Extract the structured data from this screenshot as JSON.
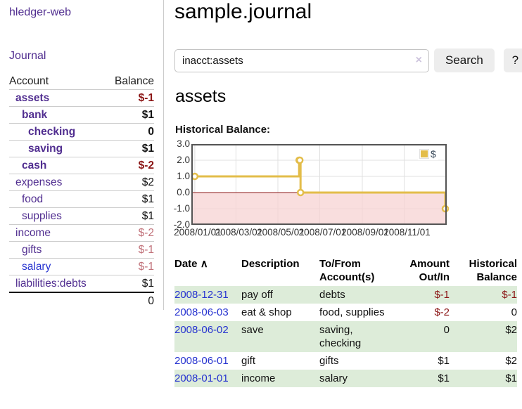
{
  "app": {
    "title": "hledger-web"
  },
  "colors": {
    "link_purple": "#512e90",
    "link_blue": "#2633d0",
    "negative": "#8b1515",
    "negative_muted": "#c17179",
    "row_green": "#ddecd9",
    "chart_line": "#e3bd4a",
    "chart_negative_fill": "#f7d3d3",
    "zero_line": "#8b1a1a"
  },
  "sidebar": {
    "journal_link": "Journal",
    "headers": {
      "account": "Account",
      "balance": "Balance"
    },
    "accounts": [
      {
        "name": "assets",
        "balance": "$-1",
        "indent": 1,
        "bold": true,
        "balance_class": "neg"
      },
      {
        "name": "bank",
        "balance": "$1",
        "indent": 2,
        "bold": true,
        "balance_class": ""
      },
      {
        "name": "checking",
        "balance": "0",
        "indent": 3,
        "bold": true,
        "balance_class": ""
      },
      {
        "name": "saving",
        "balance": "$1",
        "indent": 3,
        "bold": true,
        "balance_class": ""
      },
      {
        "name": "cash",
        "balance": "$-2",
        "indent": 2,
        "bold": true,
        "balance_class": "neg"
      },
      {
        "name": "expenses",
        "balance": "$2",
        "indent": 1,
        "bold": false,
        "balance_class": ""
      },
      {
        "name": "food",
        "balance": "$1",
        "indent": 2,
        "bold": false,
        "balance_class": ""
      },
      {
        "name": "supplies",
        "balance": "$1",
        "indent": 2,
        "bold": false,
        "balance_class": ""
      },
      {
        "name": "income",
        "balance": "$-2",
        "indent": 1,
        "bold": false,
        "balance_class": "neg-muted"
      },
      {
        "name": "gifts",
        "balance": "$-1",
        "indent": 2,
        "bold": false,
        "balance_class": "neg-muted"
      },
      {
        "name": "salary",
        "balance": "$-1",
        "indent": 2,
        "bold": false,
        "balance_class": "neg-muted",
        "link_class": "blue"
      },
      {
        "name": "liabilities:debts",
        "balance": "$1",
        "indent": 1,
        "bold": false,
        "balance_class": ""
      }
    ],
    "total": "0"
  },
  "main": {
    "title": "sample.journal",
    "search": {
      "value": "inacct:assets",
      "clear_icon": "×",
      "button_label": "Search",
      "help_label": "?"
    },
    "account_heading": "assets",
    "chart_label": "Historical Balance:"
  },
  "chart_data": {
    "type": "line",
    "title": "Historical Balance:",
    "step": true,
    "series": [
      {
        "name": "$",
        "points": [
          [
            "2008-01-01",
            1
          ],
          [
            "2008-06-01",
            2
          ],
          [
            "2008-06-02",
            2
          ],
          [
            "2008-06-03",
            0
          ],
          [
            "2008-12-31",
            -1
          ]
        ]
      }
    ],
    "x_ticks": [
      "2008/01/01",
      "2008/03/01",
      "2008/05/01",
      "2008/07/01",
      "2008/09/01",
      "2008/11/01"
    ],
    "y_ticks": [
      3.0,
      2.0,
      1.0,
      0.0,
      -1.0,
      -2.0
    ],
    "ylim": [
      -2,
      3
    ],
    "xlim": [
      "2007-12-27",
      "2009-01-02"
    ],
    "grid": true,
    "legend": {
      "label": "$",
      "position": "top-right"
    }
  },
  "register": {
    "sort_icon": "∧",
    "headers": {
      "date": "Date",
      "description": "Description",
      "accounts": "To/From Account(s)",
      "amount": "Amount Out/In",
      "balance": "Historical Balance"
    },
    "rows": [
      {
        "date": "2008-12-31",
        "description": "pay off",
        "accounts": "debts",
        "amount": "$-1",
        "amount_class": "neg",
        "balance": "$-1",
        "balance_class": "neg"
      },
      {
        "date": "2008-06-03",
        "description": "eat & shop",
        "accounts": "food, supplies",
        "amount": "$-2",
        "amount_class": "neg",
        "balance": "0",
        "balance_class": ""
      },
      {
        "date": "2008-06-02",
        "description": "save",
        "accounts": "saving, checking",
        "amount": "0",
        "amount_class": "",
        "balance": "$2",
        "balance_class": ""
      },
      {
        "date": "2008-06-01",
        "description": "gift",
        "accounts": "gifts",
        "amount": "$1",
        "amount_class": "",
        "balance": "$2",
        "balance_class": ""
      },
      {
        "date": "2008-01-01",
        "description": "income",
        "accounts": "salary",
        "amount": "$1",
        "amount_class": "",
        "balance": "$1",
        "balance_class": ""
      }
    ]
  }
}
